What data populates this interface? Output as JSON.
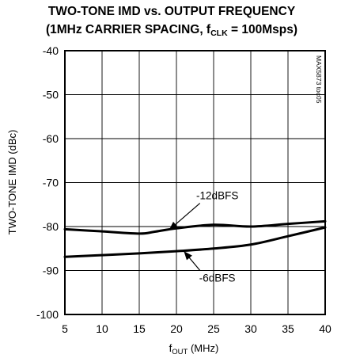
{
  "chart_data": {
    "type": "line",
    "title_line1": "TWO-TONE IMD vs. OUTPUT FREQUENCY",
    "title_line2_pre": "(1MHz CARRIER SPACING, f",
    "title_line2_sub": "CLK",
    "title_line2_post": " = 100Msps)",
    "ylabel": "TWO-TONE IMD (dBc)",
    "xlabel_pre": "f",
    "xlabel_sub": "OUT",
    "xlabel_post": " (MHz)",
    "figure_code": "MAX5873 toc05",
    "xlim": [
      5,
      40
    ],
    "ylim": [
      -100,
      -40
    ],
    "xticks": [
      5,
      10,
      15,
      20,
      25,
      30,
      35,
      40
    ],
    "yticks": [
      -40,
      -50,
      -60,
      -70,
      -80,
      -90,
      -100
    ],
    "grid": true,
    "series": [
      {
        "name": "-12dBFS",
        "x": [
          5,
          10,
          15,
          17,
          20,
          25,
          30,
          35,
          40
        ],
        "y": [
          -80.6,
          -81.1,
          -81.6,
          -81.2,
          -80.4,
          -79.6,
          -80.0,
          -79.4,
          -78.8
        ]
      },
      {
        "name": "-6dBFS",
        "x": [
          5,
          10,
          15,
          20,
          25,
          30,
          35,
          40
        ],
        "y": [
          -86.9,
          -86.5,
          -86.1,
          -85.6,
          -85.0,
          -84.1,
          -82.2,
          -80.2
        ]
      }
    ],
    "annotations": [
      {
        "text": "-12dBFS",
        "series": "-12dBFS",
        "arrow_x": 19,
        "arrow_y": -80.8,
        "label_x": 25.5,
        "label_y": -73.8
      },
      {
        "text": "-6dBFS",
        "series": "-6dBFS",
        "arrow_x": 21,
        "arrow_y": -85.6,
        "label_x": 25.5,
        "label_y": -92.5
      }
    ]
  }
}
